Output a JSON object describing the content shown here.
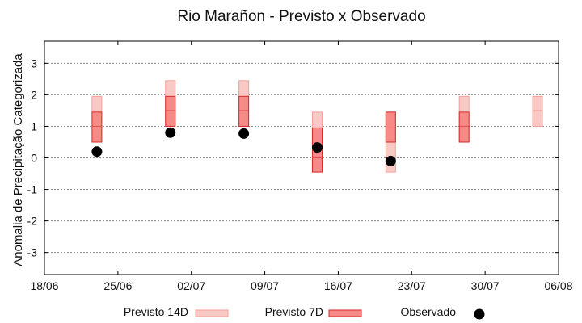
{
  "chart_data": {
    "type": "box-range",
    "title": "Rio Marañon - Previsto x Observado",
    "ylabel": "Anomalia de Precipitação Categorizada",
    "xlabel": "",
    "x_ticks": [
      "18/06",
      "25/06",
      "02/07",
      "09/07",
      "16/07",
      "23/07",
      "30/07",
      "06/08"
    ],
    "x_range": [
      "2024-06-18",
      "2024-08-06"
    ],
    "ylim": [
      -3.7,
      3.7
    ],
    "y_ticks": [
      -3,
      -2,
      -1,
      0,
      1,
      2,
      3
    ],
    "grid": true,
    "legend_placement": "bottom",
    "legend": {
      "p14": "Previsto 14D",
      "p7": "Previsto 7D",
      "obs": "Observado"
    },
    "colors": {
      "p14_fill": "#f9c9c6",
      "p14_stroke": "#f4a09a",
      "p7_fill": "#f58a87",
      "p7_stroke": "#d92a2a",
      "obs": "#000000",
      "grid": "#888888"
    },
    "series": [
      {
        "key": "p14",
        "points": [
          {
            "date": "2024-06-23",
            "low": 0.5,
            "mid": 1.0,
            "high": 1.95
          },
          {
            "date": "2024-06-30",
            "low": 1.0,
            "mid": 1.5,
            "high": 2.45
          },
          {
            "date": "2024-07-07",
            "low": 1.0,
            "mid": 1.5,
            "high": 2.45
          },
          {
            "date": "2024-07-14",
            "low": -0.45,
            "mid": 0.5,
            "high": 1.45
          },
          {
            "date": "2024-07-21",
            "low": -0.45,
            "mid": 0.5,
            "high": 1.45
          },
          {
            "date": "2024-07-28",
            "low": 0.5,
            "mid": 1.0,
            "high": 1.95
          },
          {
            "date": "2024-08-04",
            "low": 1.0,
            "mid": 1.5,
            "high": 1.95
          }
        ]
      },
      {
        "key": "p7",
        "points": [
          {
            "date": "2024-06-23",
            "low": 0.5,
            "mid": 1.0,
            "high": 1.45
          },
          {
            "date": "2024-06-30",
            "low": 1.0,
            "mid": 1.5,
            "high": 1.95
          },
          {
            "date": "2024-07-07",
            "low": 1.0,
            "mid": 1.5,
            "high": 1.95
          },
          {
            "date": "2024-07-14",
            "low": -0.45,
            "mid": 0.0,
            "high": 0.95
          },
          {
            "date": "2024-07-21",
            "low": 0.5,
            "mid": 0.95,
            "high": 1.45
          },
          {
            "date": "2024-07-28",
            "low": 0.5,
            "mid": 1.0,
            "high": 1.45
          }
        ]
      },
      {
        "key": "obs",
        "points": [
          {
            "date": "2024-06-23",
            "value": 0.2
          },
          {
            "date": "2024-06-30",
            "value": 0.8
          },
          {
            "date": "2024-07-07",
            "value": 0.77
          },
          {
            "date": "2024-07-14",
            "value": 0.33
          },
          {
            "date": "2024-07-21",
            "value": -0.1
          }
        ]
      }
    ]
  }
}
